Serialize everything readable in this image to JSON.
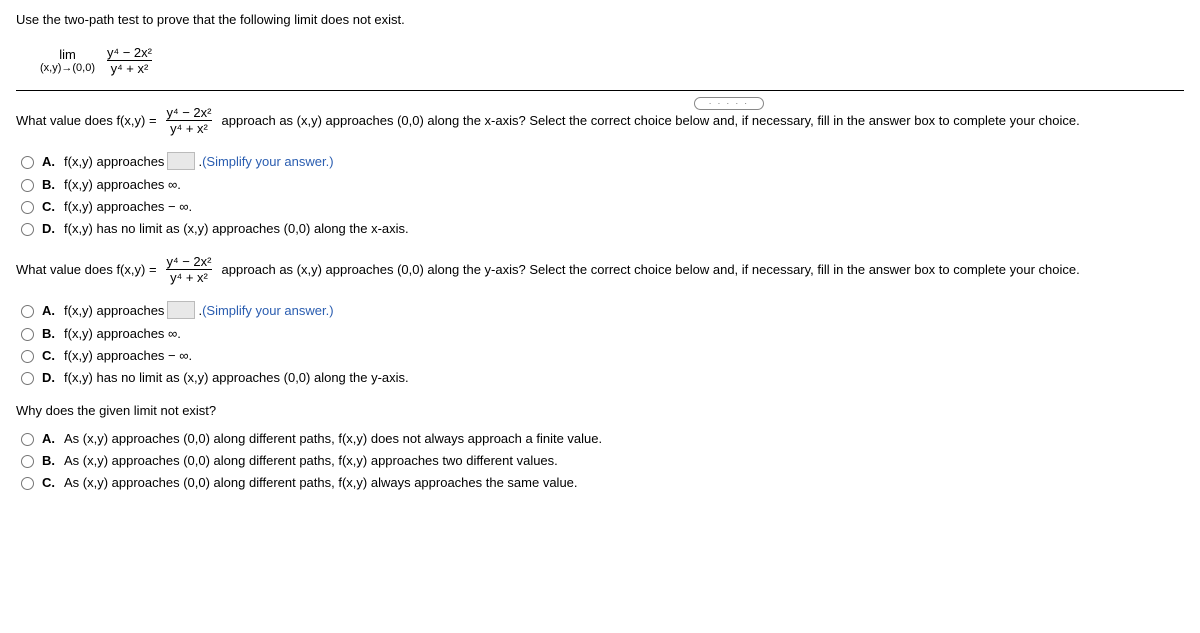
{
  "instruction": "Use the two-path test to prove that the following limit does not exist.",
  "limit": {
    "op_top": "lim",
    "op_bottom": "(x,y)→(0,0)",
    "numerator": "y⁴ − 2x²",
    "denominator": "y⁴ + x²"
  },
  "dots": "· · · · ·",
  "q1": {
    "prefix": "What value does f(x,y) =",
    "numerator": "y⁴ − 2x²",
    "denominator": "y⁴ + x²",
    "suffix": " approach as (x,y) approaches (0,0) along the x-axis? Select the correct choice below and, if necessary, fill in the answer box to complete your choice."
  },
  "q2": {
    "prefix": "What value does f(x,y) =",
    "numerator": "y⁴ − 2x²",
    "denominator": "y⁴ + x²",
    "suffix": " approach as (x,y) approaches (0,0) along the y-axis? Select the correct choice below and, if necessary, fill in the answer box to complete your choice."
  },
  "optA_pre": "f(x,y) approaches ",
  "optA_post": ". ",
  "optA_hint": "(Simplify your answer.)",
  "optB": "f(x,y) approaches ∞.",
  "optC": "f(x,y) approaches − ∞.",
  "optD_x": "f(x,y) has no limit as (x,y) approaches (0,0) along the x-axis.",
  "optD_y": "f(x,y) has no limit as (x,y) approaches (0,0) along the y-axis.",
  "labels": {
    "A": "A.",
    "B": "B.",
    "C": "C.",
    "D": "D."
  },
  "finalQ": "Why does the given limit not exist?",
  "final": {
    "A": "As (x,y) approaches (0,0) along different paths, f(x,y) does not always approach a finite value.",
    "B": "As (x,y) approaches (0,0) along different paths, f(x,y) approaches two different values.",
    "C": "As (x,y) approaches (0,0) along different paths, f(x,y) always approaches the same value."
  }
}
